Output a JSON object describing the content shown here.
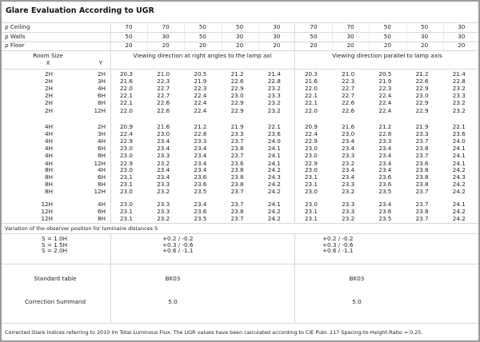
{
  "title": "Glare Evaluation According to UGR",
  "reflectances": [
    {
      "label": "ρ  Ceiling",
      "values": [
        "70",
        "70",
        "50",
        "50",
        "30",
        "70",
        "70",
        "50",
        "50",
        "30"
      ]
    },
    {
      "label": "ρ  Walls",
      "values": [
        "50",
        "30",
        "50",
        "30",
        "30",
        "50",
        "30",
        "50",
        "30",
        "30"
      ]
    },
    {
      "label": "ρ  Floor",
      "values": [
        "20",
        "20",
        "20",
        "20",
        "20",
        "20",
        "20",
        "20",
        "20",
        "20"
      ]
    }
  ],
  "header": {
    "room_size": "Room Size",
    "x": "X",
    "y": "Y",
    "left": "Viewing direction at right angles to the lamp axi",
    "right": "Viewing direction parallel to lamp axis"
  },
  "groups": [
    [
      {
        "x": "2H",
        "y": "2H",
        "left": [
          "20.3",
          "21.0",
          "20.5",
          "21.2",
          "21.4"
        ],
        "right": [
          "20.3",
          "21.0",
          "20.5",
          "21.2",
          "21.4"
        ]
      },
      {
        "x": "2H",
        "y": "3H",
        "left": [
          "21.6",
          "22.3",
          "21.9",
          "22.6",
          "22.8"
        ],
        "right": [
          "21.6",
          "22.3",
          "21.9",
          "22.6",
          "22.8"
        ]
      },
      {
        "x": "2H",
        "y": "4H",
        "left": [
          "22.0",
          "22.7",
          "22.3",
          "22.9",
          "23.2"
        ],
        "right": [
          "22.0",
          "22.7",
          "22.3",
          "22.9",
          "23.2"
        ]
      },
      {
        "x": "2H",
        "y": "6H",
        "left": [
          "22.1",
          "22.7",
          "22.4",
          "23.0",
          "23.3"
        ],
        "right": [
          "22.1",
          "22.7",
          "22.4",
          "23.0",
          "23.3"
        ]
      },
      {
        "x": "2H",
        "y": "8H",
        "left": [
          "22.1",
          "22.6",
          "22.4",
          "22.9",
          "23.2"
        ],
        "right": [
          "22.1",
          "22.6",
          "22.4",
          "22.9",
          "23.2"
        ]
      },
      {
        "x": "2H",
        "y": "12H",
        "left": [
          "22.0",
          "22.6",
          "22.4",
          "22.9",
          "23.2"
        ],
        "right": [
          "22.0",
          "22.6",
          "22.4",
          "22.9",
          "23.2"
        ]
      }
    ],
    [
      {
        "x": "4H",
        "y": "2H",
        "left": [
          "20.9",
          "21.6",
          "21.2",
          "21.9",
          "22.1"
        ],
        "right": [
          "20.9",
          "21.6",
          "21.2",
          "21.9",
          "22.1"
        ]
      },
      {
        "x": "4H",
        "y": "3H",
        "left": [
          "22.4",
          "23.0",
          "22.8",
          "23.3",
          "23.6"
        ],
        "right": [
          "22.4",
          "23.0",
          "22.8",
          "23.3",
          "23.6"
        ]
      },
      {
        "x": "4H",
        "y": "4H",
        "left": [
          "22.9",
          "23.4",
          "23.3",
          "23.7",
          "24.0"
        ],
        "right": [
          "22.9",
          "23.4",
          "23.3",
          "23.7",
          "24.0"
        ]
      },
      {
        "x": "4H",
        "y": "6H",
        "left": [
          "23.0",
          "23.4",
          "23.4",
          "23.8",
          "24.1"
        ],
        "right": [
          "23.0",
          "23.4",
          "23.4",
          "23.8",
          "24.1"
        ]
      },
      {
        "x": "4H",
        "y": "8H",
        "left": [
          "23.0",
          "23.3",
          "23.4",
          "23.7",
          "24.1"
        ],
        "right": [
          "23.0",
          "23.3",
          "23.4",
          "23.7",
          "24.1"
        ]
      },
      {
        "x": "4H",
        "y": "12H",
        "left": [
          "22.9",
          "23.2",
          "23.4",
          "23.6",
          "24.1"
        ],
        "right": [
          "22.9",
          "23.2",
          "23.4",
          "23.6",
          "24.1"
        ]
      }
    ],
    [
      {
        "x": "8H",
        "y": "4H",
        "left": [
          "23.0",
          "23.4",
          "23.4",
          "23.8",
          "24.2"
        ],
        "right": [
          "23.0",
          "23.4",
          "23.4",
          "23.8",
          "24.2"
        ]
      },
      {
        "x": "8H",
        "y": "6H",
        "left": [
          "23.1",
          "23.4",
          "23.6",
          "23.8",
          "24.3"
        ],
        "right": [
          "23.1",
          "23.4",
          "23.6",
          "23.8",
          "24.3"
        ]
      },
      {
        "x": "8H",
        "y": "8H",
        "left": [
          "23.1",
          "23.3",
          "23.6",
          "23.8",
          "24.2"
        ],
        "right": [
          "23.1",
          "23.3",
          "23.6",
          "23.8",
          "24.2"
        ]
      },
      {
        "x": "8H",
        "y": "12H",
        "left": [
          "23.0",
          "23.2",
          "23.5",
          "23.7",
          "24.2"
        ],
        "right": [
          "23.0",
          "23.2",
          "23.5",
          "23.7",
          "24.2"
        ]
      }
    ],
    [
      {
        "x": "12H",
        "y": "4H",
        "left": [
          "23.0",
          "23.3",
          "23.4",
          "23.7",
          "24.1"
        ],
        "right": [
          "23.0",
          "23.3",
          "23.4",
          "23.7",
          "24.1"
        ]
      },
      {
        "x": "12H",
        "y": "6H",
        "left": [
          "23.1",
          "23.3",
          "23.6",
          "23.8",
          "24.2"
        ],
        "right": [
          "23.1",
          "23.3",
          "23.6",
          "23.8",
          "24.2"
        ]
      },
      {
        "x": "12H",
        "y": "8H",
        "left": [
          "23.1",
          "23.2",
          "23.5",
          "23.7",
          "24.2"
        ],
        "right": [
          "23.1",
          "23.2",
          "23.5",
          "23.7",
          "24.2"
        ]
      }
    ]
  ],
  "variation": {
    "label": "Variation of the observer position for luminaire distances S",
    "rows": [
      {
        "s": "S = 1.0H",
        "left": "+0.2 / -0.2",
        "right": "+0.2 / -0.2"
      },
      {
        "s": "S = 1.5H",
        "left": "+0.3 / -0.6",
        "right": "+0.3 / -0.6"
      },
      {
        "s": "S = 2.0H",
        "left": "+0.6 / -1.1",
        "right": "+0.6 / -1.1"
      }
    ]
  },
  "standard_table": {
    "label": "Standard table",
    "left": "BK03",
    "right": "BK03"
  },
  "correction": {
    "label": "Correction Summand",
    "left": "5.0",
    "right": "5.0"
  },
  "footer": "Corrected Glare Indices referring to 2010 lm Total Luminous Flux. The UGR values have been calculated according to CIE Publ. 117    Spacing-to-Height-Ratio = 0.25."
}
